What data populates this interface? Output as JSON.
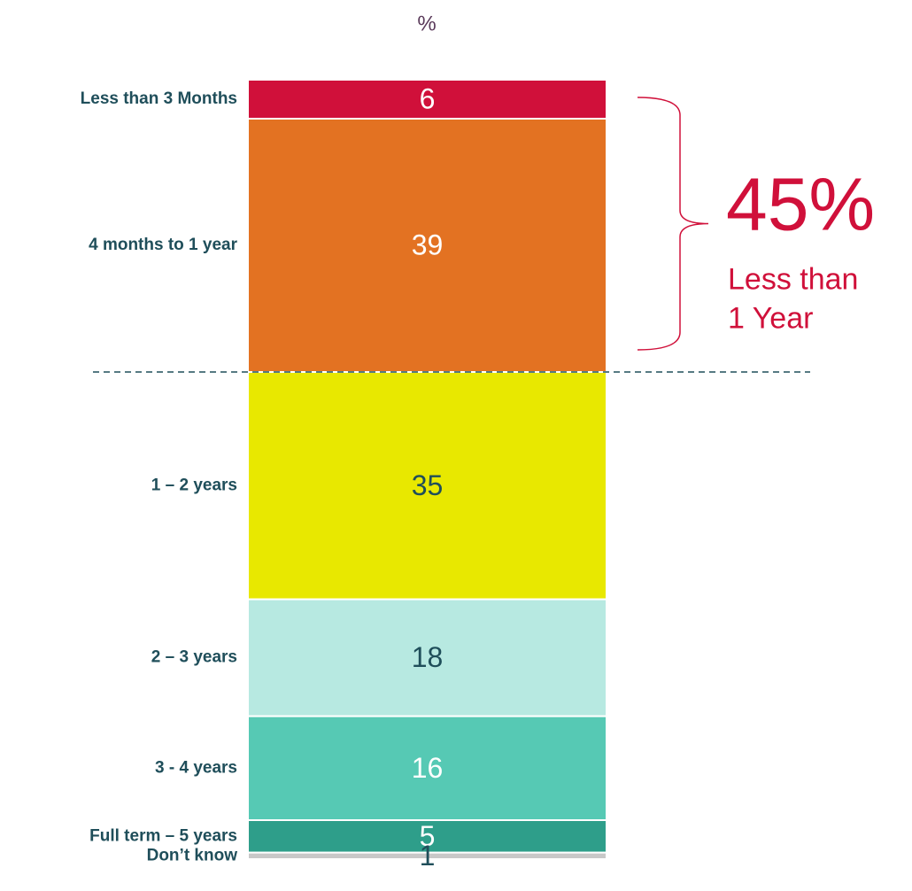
{
  "chart_data": {
    "type": "stacked-bar",
    "title": "%",
    "series": [
      {
        "name": "Less than 3 Months",
        "color": "#d0103a",
        "label_color": "#ffffff",
        "values": [
          6
        ]
      },
      {
        "name": "4 months to 1 year",
        "color": "#e37222",
        "label_color": "#ffffff",
        "values": [
          39
        ]
      },
      {
        "name": "1 – 2 years",
        "color": "#e8e800",
        "label_color": "#1f4e5a",
        "values": [
          35
        ]
      },
      {
        "name": "2 – 3 years",
        "color": "#b7e9e1",
        "label_color": "#1f4e5a",
        "values": [
          18
        ]
      },
      {
        "name": "3 - 4 years",
        "color": "#56c9b4",
        "label_color": "#ffffff",
        "values": [
          16
        ]
      },
      {
        "name": "Full term – 5 years",
        "color": "#2e9e8a",
        "label_color": "#ffffff",
        "values": [
          5
        ]
      },
      {
        "name": "Don’t know",
        "color": "#c8c8c8",
        "label_color": "#1f4e5a",
        "values": [
          1
        ]
      }
    ],
    "annotation": {
      "value": "45%",
      "lines": [
        "Less than",
        "1 Year"
      ],
      "color": "#d0103a"
    }
  }
}
